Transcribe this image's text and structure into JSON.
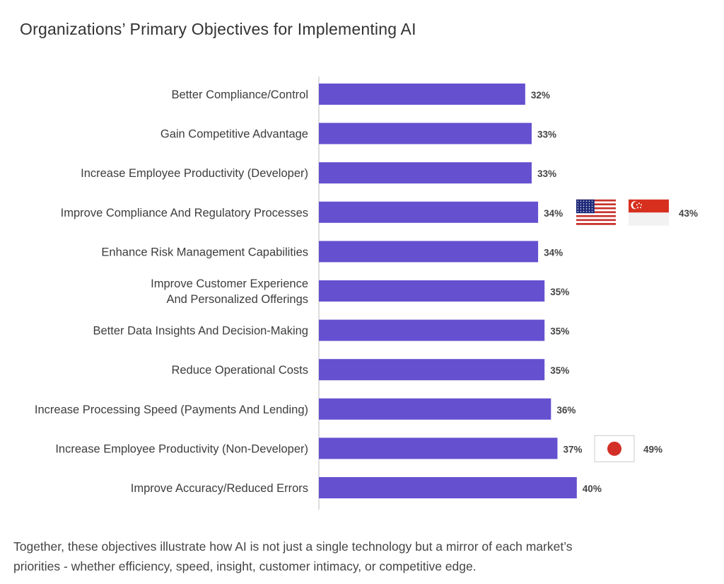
{
  "title": "Organizations’  Primary Objectives for Implementing AI",
  "footnote": "Together, these objectives illustrate how AI is not just a single technology but a mirror of each market’s priorities - whether efficiency, speed, insight, customer intimacy, or competitive edge.",
  "colors": {
    "bar": "#6550D0",
    "axis": "#bbbbbb"
  },
  "chart_data": {
    "type": "bar",
    "orientation": "horizontal",
    "title": "Organizations’  Primary Objectives for Implementing AI",
    "xlabel": "",
    "ylabel": "",
    "xlim": [
      0,
      45
    ],
    "grid": false,
    "categories": [
      [
        "Better Compliance/Control"
      ],
      [
        "Gain Competitive Advantage"
      ],
      [
        "Increase Employee Productivity (Developer)"
      ],
      [
        "Improve Compliance And Regulatory Processes"
      ],
      [
        "Enhance Risk Management Capabilities"
      ],
      [
        "Improve Customer Experience",
        "And Personalized Offerings"
      ],
      [
        "Better Data Insights And Decision-Making"
      ],
      [
        "Reduce Operational Costs"
      ],
      [
        "Increase Processing Speed (Payments And Lending)"
      ],
      [
        "Increase Employee Productivity (Non-Developer)"
      ],
      [
        "Improve Accuracy/Reduced Errors"
      ]
    ],
    "values": [
      32,
      33,
      33,
      34,
      34,
      35,
      35,
      35,
      36,
      37,
      40
    ],
    "value_labels": [
      "32%",
      "33%",
      "33%",
      "34%",
      "34%",
      "35%",
      "35%",
      "35%",
      "36%",
      "37%",
      "40%"
    ],
    "annotations": [
      {
        "row": 3,
        "flags": [
          "united-states-flag",
          "singapore-flag"
        ],
        "value": 43,
        "label": "43%"
      },
      {
        "row": 9,
        "flags": [
          "japan-flag"
        ],
        "value": 49,
        "label": "49%"
      }
    ]
  }
}
